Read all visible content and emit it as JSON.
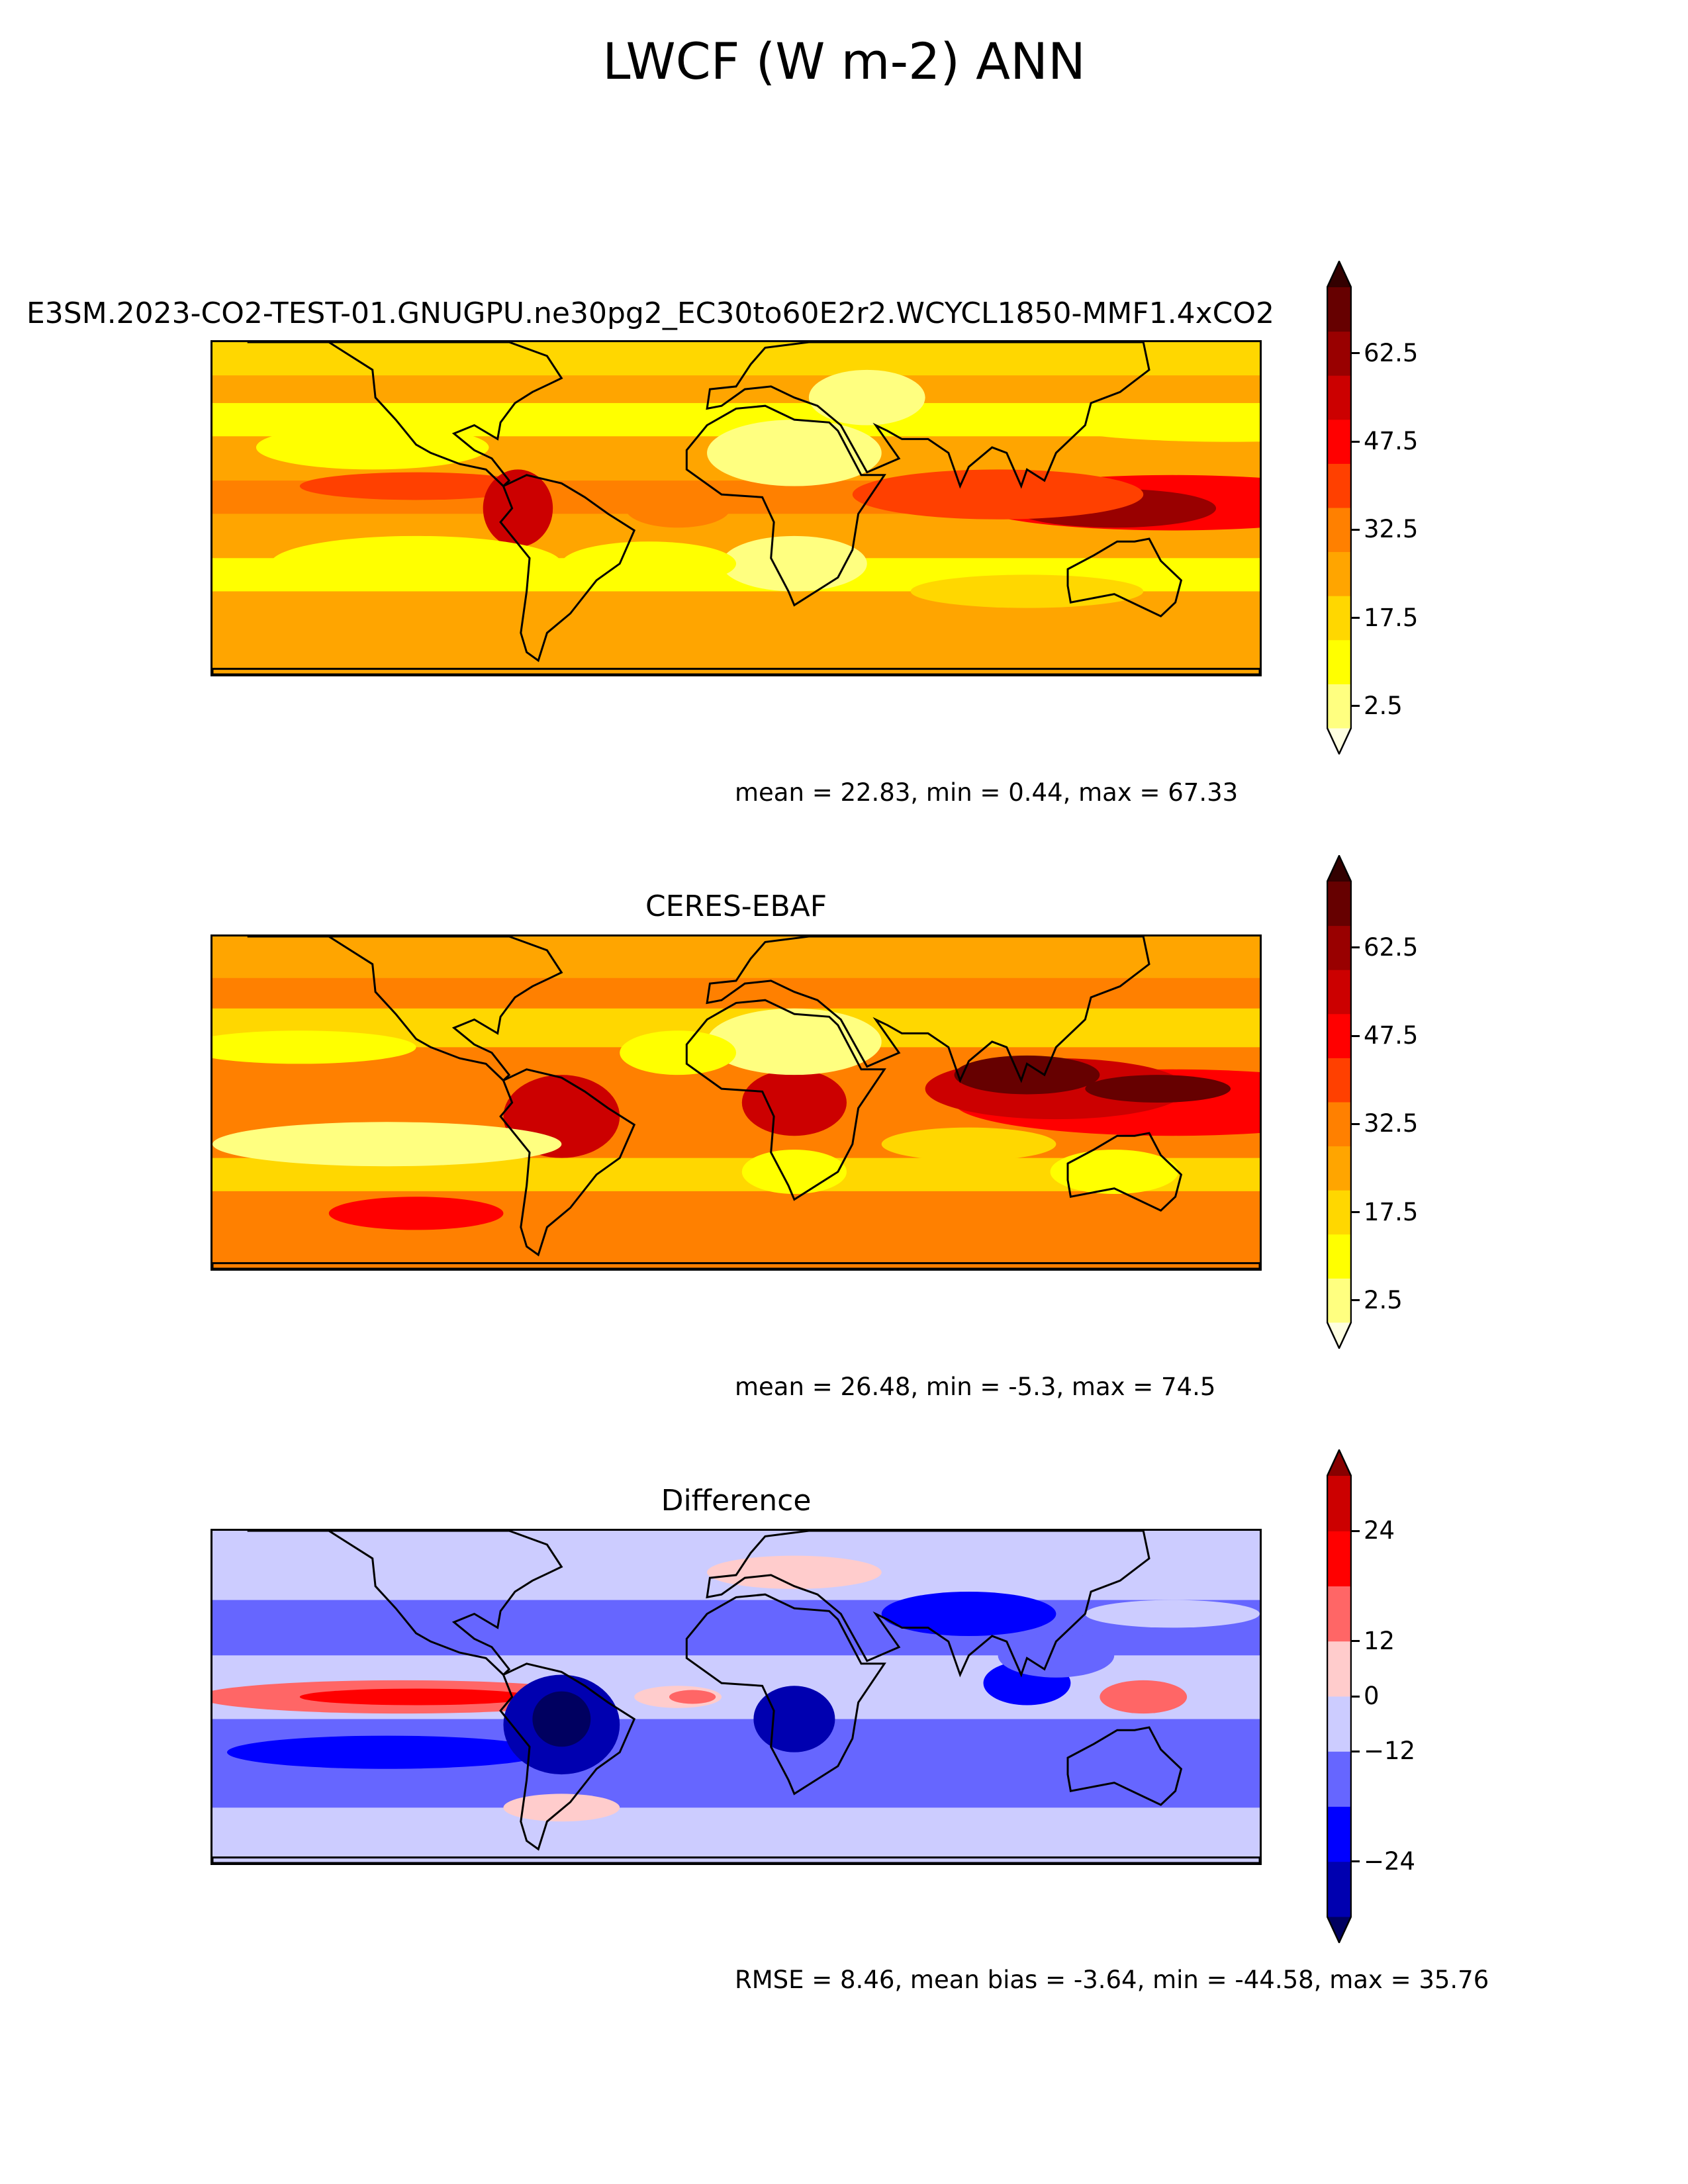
{
  "figure": {
    "title": "LWCF (W m-2) ANN"
  },
  "panels": [
    {
      "title": "E3SM.2023-CO2-TEST-01.GNUGPU.ne30pg2_EC30to60E2r2.WCYCL1850-MMF1.4xCO2",
      "stats": "mean = 22.83, min = 0.44, max = 67.33",
      "colorbar": {
        "ticks": [
          "2.5",
          "17.5",
          "32.5",
          "47.5",
          "62.5"
        ],
        "colors": [
          "#ffffe0",
          "#ffff80",
          "#ffff00",
          "#ffd700",
          "#ffa500",
          "#ff8000",
          "#ff4000",
          "#ff0000",
          "#cc0000",
          "#990000",
          "#660000",
          "#330000"
        ]
      }
    },
    {
      "title": "CERES-EBAF",
      "stats": "mean = 26.48, min = -5.3, max = 74.5",
      "colorbar": {
        "ticks": [
          "2.5",
          "17.5",
          "32.5",
          "47.5",
          "62.5"
        ],
        "colors": [
          "#ffffe0",
          "#ffff80",
          "#ffff00",
          "#ffd700",
          "#ffa500",
          "#ff8000",
          "#ff4000",
          "#ff0000",
          "#cc0000",
          "#990000",
          "#660000",
          "#330000"
        ]
      }
    },
    {
      "title": "Difference",
      "stats": "RMSE = 8.46, mean bias = -3.64, min = -44.58, max = 35.76",
      "colorbar": {
        "ticks": [
          "−24",
          "−12",
          "0",
          "12",
          "24"
        ],
        "colors": [
          "#000060",
          "#0000b0",
          "#0000ff",
          "#6666ff",
          "#ccccff",
          "#ffcccc",
          "#ff6666",
          "#ff0000",
          "#cc0000",
          "#880000"
        ]
      }
    }
  ],
  "chart_data": [
    {
      "type": "heatmap",
      "title": "E3SM.2023-CO2-TEST-01.GNUGPU.ne30pg2_EC30to60E2r2.WCYCL1850-MMF1.4xCO2",
      "variable": "LWCF (W m-2) ANN",
      "colorbar_ticks": [
        2.5,
        17.5,
        32.5,
        47.5,
        62.5
      ],
      "stats": {
        "mean": 22.83,
        "min": 0.44,
        "max": 67.33
      }
    },
    {
      "type": "heatmap",
      "title": "CERES-EBAF",
      "variable": "LWCF (W m-2) ANN",
      "colorbar_ticks": [
        2.5,
        17.5,
        32.5,
        47.5,
        62.5
      ],
      "stats": {
        "mean": 26.48,
        "min": -5.3,
        "max": 74.5
      }
    },
    {
      "type": "heatmap",
      "title": "Difference",
      "variable": "LWCF (W m-2) ANN",
      "colorbar_ticks": [
        -24,
        -12,
        0,
        12,
        24
      ],
      "stats": {
        "rmse": 8.46,
        "mean_bias": -3.64,
        "min": -44.58,
        "max": 35.76
      }
    }
  ]
}
